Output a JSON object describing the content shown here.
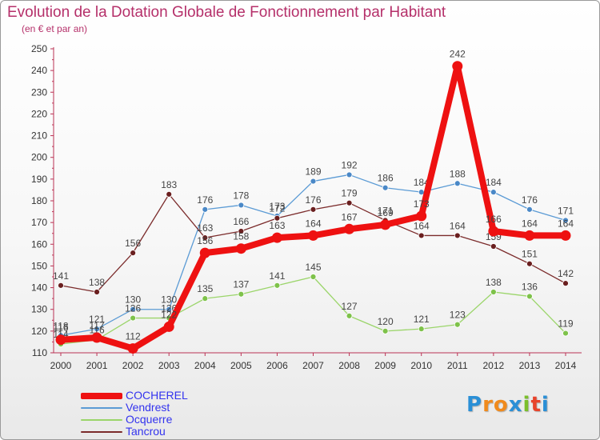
{
  "header": {
    "title": "Evolution de la Dotation Globale de Fonctionnement par Habitant",
    "subtitle": "(en € et par an)"
  },
  "logo": {
    "letters": [
      "P",
      "r",
      "o",
      "x",
      "i",
      "t",
      "i"
    ],
    "colors": [
      "#2a8fd6",
      "#f08a1c",
      "#f08a1c",
      "#2a8fd6",
      "#7bbf2b",
      "#e8432b",
      "#2a8fd6"
    ]
  },
  "chart_data": {
    "type": "line",
    "title": "Evolution de la Dotation Globale de Fonctionnement par Habitant",
    "subtitle": "(en € et par an)",
    "xlabel": "",
    "ylabel": "",
    "ylim": [
      110,
      250
    ],
    "ytick_step": 10,
    "grid": false,
    "legend_position": "bottom-left",
    "categories": [
      "2000",
      "2001",
      "2002",
      "2003",
      "2004",
      "2005",
      "2006",
      "2007",
      "2008",
      "2009",
      "2010",
      "2011",
      "2012",
      "2013",
      "2014"
    ],
    "series": [
      {
        "name": "Vendrest",
        "color": "#5b9bd5",
        "point_color": "#4a88c7",
        "values": [
          118,
          121,
          130,
          130,
          176,
          178,
          173,
          189,
          192,
          186,
          184,
          188,
          184,
          176,
          171
        ]
      },
      {
        "name": "Ocquerre",
        "color": "#9bd56a",
        "point_color": "#7ec24a",
        "values": [
          114,
          116,
          126,
          126,
          135,
          137,
          141,
          145,
          127,
          120,
          121,
          123,
          138,
          136,
          119
        ]
      },
      {
        "name": "Tancrou",
        "color": "#7b2b2b",
        "point_color": "#6a1f1f",
        "values": [
          141,
          138,
          156,
          183,
          163,
          166,
          172,
          176,
          179,
          171,
          164,
          164,
          159,
          151,
          142
        ]
      },
      {
        "name": "COCHEREL",
        "color": "#ee1111",
        "point_color": "#ee1111",
        "values": [
          116,
          117,
          112,
          122,
          156,
          158,
          163,
          164,
          167,
          169,
          173,
          242,
          166,
          164,
          164
        ]
      }
    ],
    "legend_order": [
      "COCHEREL",
      "Vendrest",
      "Ocquerre",
      "Tancrou"
    ],
    "legend_colors": {
      "COCHEREL": "#3333ee",
      "Vendrest": "#3333ee",
      "Ocquerre": "#3333ee",
      "Tancrou": "#3333ee"
    }
  }
}
